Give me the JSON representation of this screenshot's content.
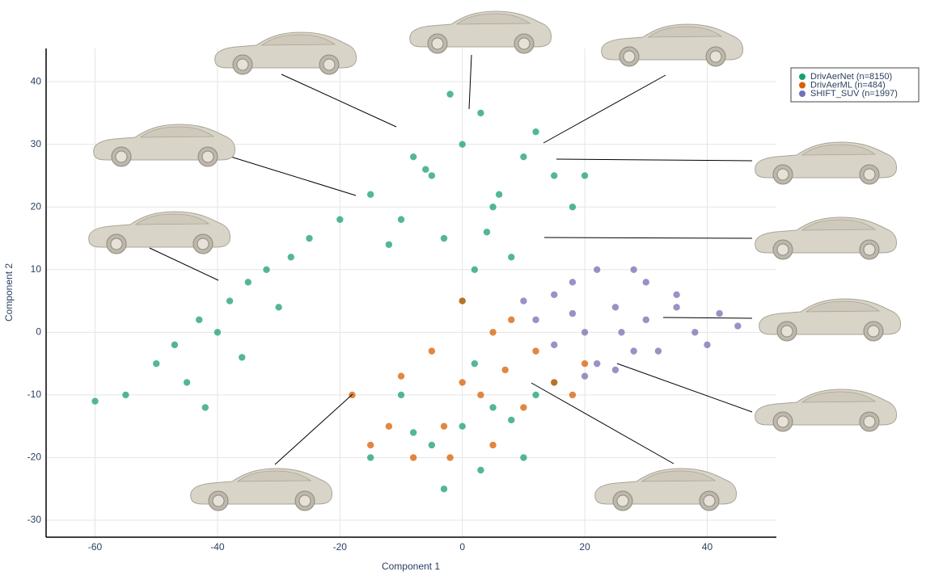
{
  "chart_data": {
    "type": "scatter",
    "xlabel": "Component 1",
    "ylabel": "Component 2",
    "xlim": [
      -68,
      51.3
    ],
    "ylim": [
      -32.7,
      45.3
    ],
    "xticks": [
      -60,
      -40,
      -20,
      0,
      20,
      40
    ],
    "yticks": [
      -30,
      -20,
      -10,
      0,
      10,
      20,
      30,
      40
    ],
    "grid": true,
    "legend": "top-right",
    "series": [
      {
        "name": "DrivAerNet (n=8150)",
        "color": "#1b9e77",
        "x": [
          -5,
          0,
          5,
          10,
          -10,
          -15,
          3,
          -3,
          8,
          12,
          15,
          -8,
          2,
          -2,
          18,
          -12,
          0,
          6,
          -6,
          4,
          -55,
          -50,
          -47,
          -43,
          -40,
          -38,
          -35,
          -32,
          -28,
          -45,
          -42,
          -36,
          -30,
          -25,
          -20,
          -60,
          0,
          -5,
          5,
          10,
          -10,
          3,
          -3,
          8,
          -8,
          12,
          15,
          -15,
          2,
          20
        ],
        "values": [
          25,
          30,
          20,
          28,
          18,
          22,
          35,
          15,
          12,
          32,
          25,
          28,
          10,
          38,
          20,
          14,
          5,
          22,
          26,
          16,
          -10,
          -5,
          -2,
          2,
          0,
          5,
          8,
          10,
          12,
          -8,
          -12,
          -4,
          4,
          15,
          18,
          -11,
          -15,
          -18,
          -12,
          -20,
          -10,
          -22,
          -25,
          -14,
          -16,
          -10,
          -8,
          -20,
          -5,
          25
        ]
      },
      {
        "name": "DrivAerML (n=484)",
        "color": "#d95f02",
        "x": [
          -18,
          -15,
          -10,
          -5,
          0,
          5,
          10,
          15,
          20,
          -3,
          3,
          8,
          -8,
          12,
          0,
          5,
          -12,
          18,
          -2,
          7
        ],
        "values": [
          -10,
          -18,
          -7,
          -3,
          5,
          0,
          -12,
          -8,
          -5,
          -15,
          -10,
          2,
          -20,
          -3,
          -8,
          -18,
          -15,
          -10,
          -20,
          -6
        ]
      },
      {
        "name": "SHIFT_SUV (n=1997)",
        "color": "#7570b3",
        "x": [
          10,
          12,
          15,
          18,
          20,
          22,
          25,
          28,
          30,
          32,
          35,
          38,
          40,
          42,
          45,
          20,
          25,
          30,
          15,
          22,
          28,
          35,
          18,
          26
        ],
        "values": [
          5,
          2,
          -2,
          8,
          0,
          -5,
          4,
          10,
          2,
          -3,
          6,
          0,
          -2,
          3,
          1,
          -7,
          -6,
          8,
          6,
          10,
          -3,
          4,
          3,
          0
        ]
      }
    ]
  }
}
